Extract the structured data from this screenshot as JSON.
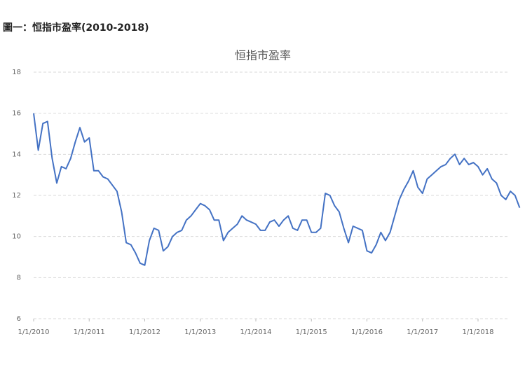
{
  "heading": "圖一：恒指市盈率(2010-2018)",
  "chart_data": {
    "type": "line",
    "title": "恒指市盈率",
    "x": [
      "2010-01",
      "2010-02",
      "2010-03",
      "2010-04",
      "2010-05",
      "2010-06",
      "2010-07",
      "2010-08",
      "2010-09",
      "2010-10",
      "2010-11",
      "2010-12",
      "2011-01",
      "2011-02",
      "2011-03",
      "2011-04",
      "2011-05",
      "2011-06",
      "2011-07",
      "2011-08",
      "2011-09",
      "2011-10",
      "2011-11",
      "2011-12",
      "2012-01",
      "2012-02",
      "2012-03",
      "2012-04",
      "2012-05",
      "2012-06",
      "2012-07",
      "2012-08",
      "2012-09",
      "2012-10",
      "2012-11",
      "2012-12",
      "2013-01",
      "2013-02",
      "2013-03",
      "2013-04",
      "2013-05",
      "2013-06",
      "2013-07",
      "2013-08",
      "2013-09",
      "2013-10",
      "2013-11",
      "2013-12",
      "2014-01",
      "2014-02",
      "2014-03",
      "2014-04",
      "2014-05",
      "2014-06",
      "2014-07",
      "2014-08",
      "2014-09",
      "2014-10",
      "2014-11",
      "2014-12",
      "2015-01",
      "2015-02",
      "2015-03",
      "2015-04",
      "2015-05",
      "2015-06",
      "2015-07",
      "2015-08",
      "2015-09",
      "2015-10",
      "2015-11",
      "2015-12",
      "2016-01",
      "2016-02",
      "2016-03",
      "2016-04",
      "2016-05",
      "2016-06",
      "2016-07",
      "2016-08",
      "2016-09",
      "2016-10",
      "2016-11",
      "2016-12",
      "2017-01",
      "2017-02",
      "2017-03",
      "2017-04",
      "2017-05",
      "2017-06",
      "2017-07",
      "2017-08",
      "2017-09",
      "2017-10",
      "2017-11",
      "2017-12",
      "2018-01",
      "2018-02",
      "2018-03",
      "2018-04",
      "2018-05",
      "2018-06",
      "2018-07",
      "2018-08",
      "2018-09",
      "2018-10"
    ],
    "series": [
      {
        "name": "恒指市盈率",
        "color": "#4472c4",
        "values": [
          16,
          14.2,
          15.5,
          15.6,
          13.8,
          12.6,
          13.4,
          13.3,
          13.8,
          14.6,
          15.3,
          14.6,
          14.8,
          13.2,
          13.2,
          12.9,
          12.8,
          12.5,
          12.2,
          11.2,
          9.7,
          9.6,
          9.2,
          8.7,
          8.6,
          9.8,
          10.4,
          10.3,
          9.3,
          9.5,
          10,
          10.2,
          10.3,
          10.8,
          11,
          11.3,
          11.6,
          11.5,
          11.3,
          10.8,
          10.8,
          9.8,
          10.2,
          10.4,
          10.6,
          11,
          10.8,
          10.7,
          10.6,
          10.3,
          10.3,
          10.7,
          10.8,
          10.5,
          10.8,
          11,
          10.4,
          10.3,
          10.8,
          10.8,
          10.2,
          10.2,
          10.4,
          12.1,
          12,
          11.5,
          11.2,
          10.4,
          9.7,
          10.5,
          10.4,
          10.3,
          9.3,
          9.2,
          9.6,
          10.2,
          9.8,
          10.2,
          11,
          11.8,
          12.3,
          12.7,
          13.2,
          12.4,
          12.1,
          12.8,
          13,
          13.2,
          13.4,
          13.5,
          13.8,
          14,
          13.5,
          13.8,
          13.5,
          13.6,
          13.4,
          13,
          13.3,
          12.8,
          12.6,
          12,
          11.8,
          12.2,
          12,
          11.4
        ]
      }
    ],
    "xticks": [
      {
        "value": "2010-01",
        "label": "1/1/2010"
      },
      {
        "value": "2011-01",
        "label": "1/1/2011"
      },
      {
        "value": "2012-01",
        "label": "1/1/2012"
      },
      {
        "value": "2013-01",
        "label": "1/1/2013"
      },
      {
        "value": "2014-01",
        "label": "1/1/2014"
      },
      {
        "value": "2015-01",
        "label": "1/1/2015"
      },
      {
        "value": "2016-01",
        "label": "1/1/2016"
      },
      {
        "value": "2017-01",
        "label": "1/1/2017"
      },
      {
        "value": "2018-01",
        "label": "1/1/2018"
      }
    ],
    "ylim": [
      6,
      18
    ],
    "yticks": [
      6,
      8,
      10,
      12,
      14,
      16,
      18
    ],
    "grid": true
  }
}
